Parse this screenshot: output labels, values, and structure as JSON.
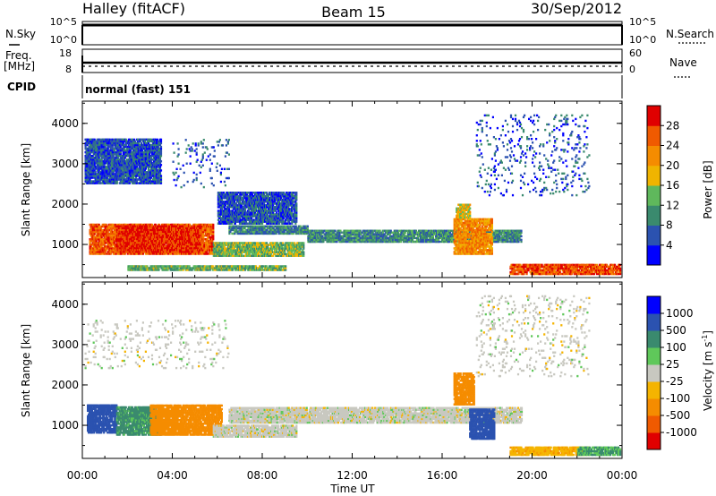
{
  "header": {
    "station": "Halley (fitACF)",
    "beam": "Beam 15",
    "date": "30/Sep/2012"
  },
  "top_panels": {
    "nsky_label": "N.Sky",
    "nsky_ticks": [
      "10^5",
      "10^0"
    ],
    "nsearch_label": "N.Search",
    "nsearch_ticks": [
      "10^5",
      "10^0"
    ],
    "freq_label": "Freq.",
    "freq_unit": "[MHz]",
    "freq_ticks": [
      "18",
      "8"
    ],
    "nave_label": "Nave",
    "nave_ticks": [
      "60",
      "0"
    ],
    "cpid_label": "CPID",
    "cpid_value": "normal (fast) 151"
  },
  "colors": {
    "power_scale": [
      "#0000ff",
      "#2b52b0",
      "#3a8a6e",
      "#5fb85c",
      "#f0b400",
      "#f58c00",
      "#f05a00",
      "#e00000"
    ],
    "velocity_scale": [
      "#e00000",
      "#f05a00",
      "#f58c00",
      "#f5b400",
      "#c8c8c0",
      "#5fc85a",
      "#3a8a6e",
      "#2b52b0",
      "#0000ff"
    ]
  },
  "chart_data": [
    {
      "type": "heatmap",
      "title": "",
      "xlabel": "Time UT",
      "ylabel": "Slant Range [km]",
      "xlim": [
        "00:00",
        "24:00"
      ],
      "ylim": [
        180,
        4550
      ],
      "x_ticks": [
        "00:00",
        "04:00",
        "08:00",
        "12:00",
        "16:00",
        "20:00",
        "00:00"
      ],
      "y_ticks": [
        1000,
        2000,
        3000,
        4000
      ],
      "colorbar": {
        "label": "Power [dB]",
        "ticks": [
          4,
          8,
          12,
          16,
          20,
          24,
          28
        ],
        "range": [
          0,
          32
        ]
      },
      "regions": [
        {
          "t0": 0.3,
          "t1": 5.8,
          "r0": 750,
          "r1": 1500,
          "value": 26
        },
        {
          "t0": 1.5,
          "t1": 5.2,
          "r0": 800,
          "r1": 1450,
          "value": 29
        },
        {
          "t0": 5.8,
          "t1": 9.8,
          "r0": 700,
          "r1": 1050,
          "value": 14
        },
        {
          "t0": 6.5,
          "t1": 10.0,
          "r0": 1250,
          "r1": 1450,
          "value": 9
        },
        {
          "t0": 10.0,
          "t1": 19.5,
          "r0": 1050,
          "r1": 1350,
          "value": 10
        },
        {
          "t0": 16.5,
          "t1": 18.2,
          "r0": 750,
          "r1": 1650,
          "value": 22
        },
        {
          "t0": 16.6,
          "t1": 17.2,
          "r0": 1650,
          "r1": 2000,
          "value": 18
        },
        {
          "t0": 19.0,
          "t1": 23.9,
          "r0": 250,
          "r1": 480,
          "value": 27
        },
        {
          "t0": 2.0,
          "t1": 9.0,
          "r0": 350,
          "r1": 480,
          "value": 13
        },
        {
          "t0": 0.1,
          "t1": 3.5,
          "r0": 2500,
          "r1": 3600,
          "value": 6
        },
        {
          "t0": 4.0,
          "t1": 6.5,
          "r0": 2400,
          "r1": 3600,
          "value": 6
        },
        {
          "t0": 6.0,
          "t1": 9.5,
          "r0": 1500,
          "r1": 2300,
          "value": 6
        },
        {
          "t0": 17.5,
          "t1": 22.5,
          "r0": 2200,
          "r1": 4200,
          "value": 6
        }
      ]
    },
    {
      "type": "heatmap",
      "title": "",
      "xlabel": "Time UT",
      "ylabel": "Slant Range [km]",
      "xlim": [
        "00:00",
        "24:00"
      ],
      "ylim": [
        180,
        4550
      ],
      "x_ticks": [
        "00:00",
        "04:00",
        "08:00",
        "12:00",
        "16:00",
        "20:00",
        "00:00"
      ],
      "y_ticks": [
        1000,
        2000,
        3000,
        4000
      ],
      "colorbar": {
        "label": "Velocity [m s",
        "label_superscript": "-1",
        "label_close": "]",
        "ticks": [
          "1000",
          "500",
          "100",
          "25",
          "-25",
          "-100",
          "-500",
          "-1000"
        ]
      },
      "regions": [
        {
          "t0": 0.2,
          "t1": 1.5,
          "r0": 800,
          "r1": 1500,
          "value": 600
        },
        {
          "t0": 1.5,
          "t1": 3.5,
          "r0": 750,
          "r1": 1450,
          "value": 120
        },
        {
          "t0": 3.0,
          "t1": 6.2,
          "r0": 750,
          "r1": 1500,
          "value": -200
        },
        {
          "t0": 5.8,
          "t1": 9.5,
          "r0": 700,
          "r1": 1000,
          "value": 0
        },
        {
          "t0": 6.5,
          "t1": 19.5,
          "r0": 1050,
          "r1": 1450,
          "value": 0
        },
        {
          "t0": 16.5,
          "t1": 17.4,
          "r0": 1500,
          "r1": 2300,
          "value": -200
        },
        {
          "t0": 17.2,
          "t1": 18.3,
          "r0": 650,
          "r1": 1400,
          "value": 600
        },
        {
          "t0": 19.0,
          "t1": 22.5,
          "r0": 250,
          "r1": 450,
          "value": -80
        },
        {
          "t0": 22.0,
          "t1": 23.9,
          "r0": 250,
          "r1": 450,
          "value": 100
        },
        {
          "t0": 0.1,
          "t1": 6.5,
          "r0": 2400,
          "r1": 3600,
          "value": 0
        },
        {
          "t0": 17.5,
          "t1": 22.5,
          "r0": 2200,
          "r1": 4200,
          "value": 0
        }
      ]
    }
  ]
}
